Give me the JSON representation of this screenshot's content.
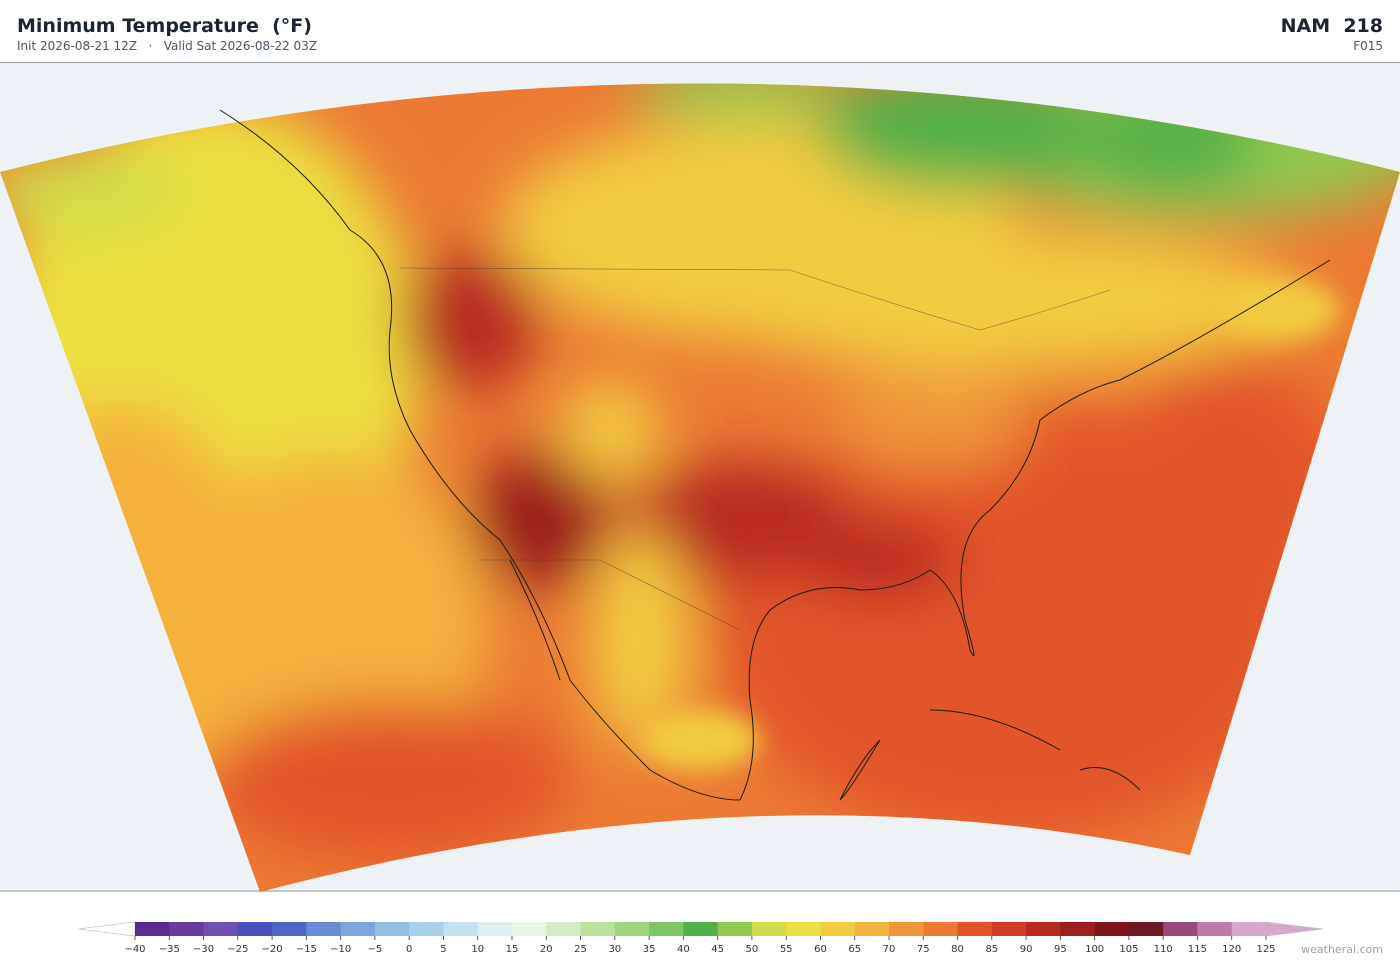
{
  "header": {
    "title": "Minimum Temperature  (°F)",
    "init": "Init 2026-08-21 12Z",
    "separator": "·",
    "valid": "Valid Sat 2026-08-22 03Z",
    "model": "NAM  218",
    "forecast_hour": "F015"
  },
  "colorbar": {
    "ticks": [
      {
        "value": -40,
        "label": "−40"
      },
      {
        "value": -35,
        "label": "−35"
      },
      {
        "value": -30,
        "label": "−30"
      },
      {
        "value": -25,
        "label": "−25"
      },
      {
        "value": -20,
        "label": "−20"
      },
      {
        "value": -15,
        "label": "−15"
      },
      {
        "value": -10,
        "label": "−10"
      },
      {
        "value": -5,
        "label": "−5"
      },
      0,
      5,
      10,
      15,
      20,
      25,
      30,
      35,
      40,
      45,
      50,
      55,
      60,
      65,
      70,
      75,
      80,
      85,
      90,
      95,
      100,
      105,
      110,
      115,
      120,
      125
    ],
    "colors": [
      "#5b2a8e",
      "#6a3a9e",
      "#6f4fb0",
      "#4a4fc0",
      "#4e66c8",
      "#6a8cd4",
      "#7ea6dc",
      "#92c0e2",
      "#a8d2ea",
      "#c4e2ee",
      "#dcefee",
      "#e8f4e6",
      "#d4ecc4",
      "#bce2a0",
      "#a0d682",
      "#7fc668",
      "#52b04a",
      "#92c850",
      "#cfdc48",
      "#ece040",
      "#f2cc40",
      "#f4b23e",
      "#f0963a",
      "#ec7a34",
      "#e2542a",
      "#d03c24",
      "#b82a20",
      "#9c1e1e",
      "#82161c",
      "#6e1a26",
      "#9a4a7a",
      "#c07aaa",
      "#d8a8cc"
    ],
    "under_color": "#ffffff",
    "over_color": "#d8a8cc"
  },
  "footer": {
    "watermark": "weatherai.com"
  }
}
